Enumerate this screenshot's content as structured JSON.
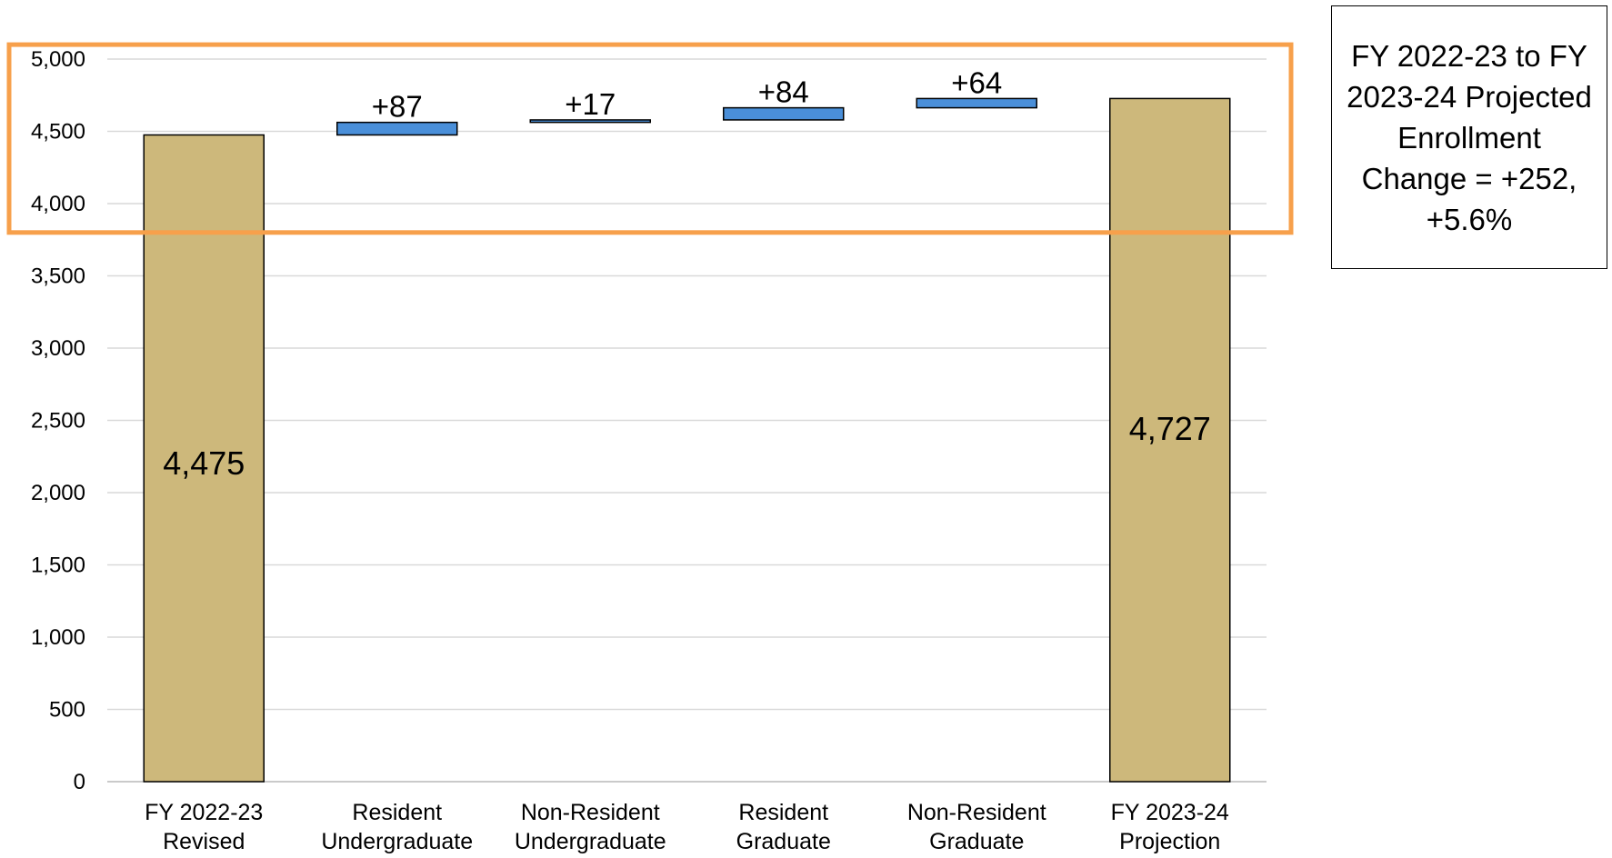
{
  "chart_data": {
    "type": "waterfall",
    "categories": [
      [
        "FY 2022-23",
        "Revised"
      ],
      [
        "Resident",
        "Undergraduate"
      ],
      [
        "Non-Resident",
        "Undergraduate"
      ],
      [
        "Resident",
        "Graduate"
      ],
      [
        "Non-Resident",
        "Graduate"
      ],
      [
        "FY 2023-24",
        "Projection"
      ]
    ],
    "steps": [
      {
        "kind": "total",
        "value": 4475,
        "label": "4,475"
      },
      {
        "kind": "delta",
        "value": 87,
        "label": "+87"
      },
      {
        "kind": "delta",
        "value": 17,
        "label": "+17"
      },
      {
        "kind": "delta",
        "value": 84,
        "label": "+84"
      },
      {
        "kind": "delta",
        "value": 64,
        "label": "+64"
      },
      {
        "kind": "total",
        "value": 4727,
        "label": "4,727"
      }
    ],
    "ylim": [
      0,
      5000
    ],
    "yticks": [
      0,
      500,
      1000,
      1500,
      2000,
      2500,
      3000,
      3500,
      4000,
      4500,
      5000
    ],
    "ytick_labels": [
      "0",
      "500",
      "1,000",
      "1,500",
      "2,000",
      "2,500",
      "3,000",
      "3,500",
      "4,000",
      "4,500",
      "5,000"
    ],
    "grid": true,
    "colors": {
      "total": "#CDB87B",
      "delta": "#4A8FD9",
      "highlight": "#F7A04B",
      "grid": "#D9D9D9"
    },
    "highlight_range": [
      3800,
      5100
    ],
    "annotation": "FY 2022-23 to FY 2023-24 Projected Enrollment Change = +252, +5.6%"
  }
}
